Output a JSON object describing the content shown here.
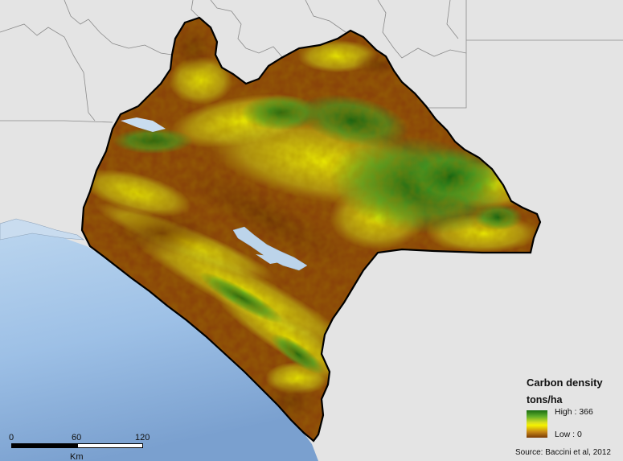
{
  "legend": {
    "title": "Carbon density",
    "unit": "tons/ha",
    "high_label": "High : 366",
    "low_label": "Low : 0",
    "ramp_colors": [
      "#1a6b12",
      "#5fae2a",
      "#d8e020",
      "#f4f200",
      "#c98a16",
      "#7a3a06"
    ]
  },
  "scalebar": {
    "ticks": [
      "0",
      "60",
      "120"
    ],
    "unit": "Km"
  },
  "source": "Source: Baccini et al, 2012",
  "colors": {
    "background": "#e4e4e4",
    "ocean": "#a9c9e8",
    "low_carbon": "#7a3a06",
    "mid_carbon": "#e8e200",
    "high_carbon": "#1a6b12",
    "boundary": "#000000"
  }
}
